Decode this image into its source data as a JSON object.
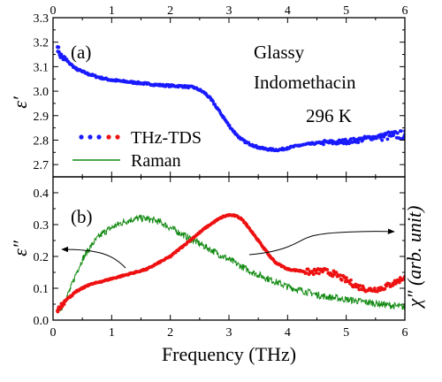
{
  "chart_data": [
    {
      "panel": "(a)",
      "type": "scatter",
      "ylabel": "ε′",
      "xlim": [
        0,
        6
      ],
      "ylim": [
        2.65,
        3.3
      ],
      "yticks": [
        "2.7",
        "2.8",
        "2.9",
        "3.0",
        "3.1",
        "3.2",
        "3.3"
      ],
      "xticks_top": [
        "0",
        "1",
        "2",
        "3",
        "4",
        "5",
        "6"
      ],
      "annotations": [
        "Glassy",
        "Indomethacin",
        "296 K"
      ],
      "legend": {
        "placement": "bottom-left",
        "entries": [
          "THz-TDS",
          "Raman"
        ]
      },
      "series": [
        {
          "name": "THz-TDS",
          "color": "#1a1aff",
          "x": [
            0.08,
            0.1,
            0.12,
            0.15,
            0.2,
            0.3,
            0.4,
            0.5,
            0.6,
            0.8,
            1.0,
            1.2,
            1.4,
            1.6,
            1.8,
            2.0,
            2.2,
            2.4,
            2.5,
            2.6,
            2.7,
            2.8,
            2.9,
            3.0,
            3.1,
            3.2,
            3.3,
            3.4,
            3.5,
            3.6,
            3.7,
            3.8,
            3.9,
            4.0,
            4.2,
            4.4,
            4.6,
            4.8,
            5.0,
            5.2,
            5.4,
            5.6,
            5.8,
            6.0
          ],
          "y": [
            3.18,
            3.16,
            3.15,
            3.14,
            3.13,
            3.11,
            3.09,
            3.08,
            3.07,
            3.055,
            3.045,
            3.04,
            3.035,
            3.03,
            3.025,
            3.022,
            3.02,
            3.015,
            3.005,
            2.99,
            2.965,
            2.93,
            2.895,
            2.86,
            2.83,
            2.805,
            2.79,
            2.78,
            2.77,
            2.765,
            2.762,
            2.76,
            2.762,
            2.768,
            2.778,
            2.785,
            2.79,
            2.79,
            2.795,
            2.8,
            2.81,
            2.815,
            2.82,
            2.822
          ]
        }
      ]
    },
    {
      "panel": "(b)",
      "type": "line",
      "xlabel": "Frequency (THz)",
      "ylabel": "ε″",
      "ylabel_right": "χ″ (arb. unit)",
      "xlim": [
        0,
        6
      ],
      "ylim": [
        0,
        0.45
      ],
      "xticks": [
        "0",
        "1",
        "2",
        "3",
        "4",
        "5",
        "6"
      ],
      "yticks": [
        "0.0",
        "0.1",
        "0.2",
        "0.3",
        "0.4"
      ],
      "series": [
        {
          "name": "THz-TDS",
          "color": "#ee1111",
          "x": [
            0.08,
            0.1,
            0.15,
            0.2,
            0.3,
            0.4,
            0.5,
            0.6,
            0.8,
            1.0,
            1.2,
            1.4,
            1.6,
            1.8,
            2.0,
            2.2,
            2.4,
            2.6,
            2.8,
            2.9,
            3.0,
            3.1,
            3.2,
            3.3,
            3.4,
            3.5,
            3.6,
            3.7,
            3.8,
            3.9,
            4.0,
            4.2,
            4.4,
            4.6,
            4.8,
            5.0,
            5.2,
            5.4,
            5.6,
            5.8,
            6.0
          ],
          "y": [
            0.03,
            0.04,
            0.05,
            0.06,
            0.075,
            0.09,
            0.1,
            0.11,
            0.12,
            0.13,
            0.14,
            0.15,
            0.16,
            0.18,
            0.2,
            0.23,
            0.26,
            0.29,
            0.315,
            0.325,
            0.33,
            0.328,
            0.32,
            0.3,
            0.275,
            0.25,
            0.225,
            0.2,
            0.18,
            0.17,
            0.16,
            0.155,
            0.15,
            0.155,
            0.145,
            0.125,
            0.105,
            0.095,
            0.1,
            0.115,
            0.135
          ]
        },
        {
          "name": "Raman",
          "color": "#128a12",
          "x": [
            0.12,
            0.2,
            0.3,
            0.4,
            0.5,
            0.6,
            0.7,
            0.8,
            0.9,
            1.0,
            1.1,
            1.2,
            1.3,
            1.4,
            1.5,
            1.6,
            1.8,
            2.0,
            2.2,
            2.4,
            2.6,
            2.8,
            3.0,
            3.2,
            3.4,
            3.6,
            3.8,
            4.0,
            4.2,
            4.4,
            4.6,
            4.8,
            5.0,
            5.2,
            5.4,
            5.6,
            5.8,
            6.0
          ],
          "y": [
            0.03,
            0.06,
            0.1,
            0.15,
            0.19,
            0.22,
            0.245,
            0.265,
            0.28,
            0.29,
            0.3,
            0.308,
            0.314,
            0.318,
            0.32,
            0.318,
            0.31,
            0.29,
            0.27,
            0.25,
            0.23,
            0.21,
            0.19,
            0.17,
            0.15,
            0.135,
            0.12,
            0.105,
            0.095,
            0.085,
            0.075,
            0.07,
            0.065,
            0.06,
            0.055,
            0.05,
            0.045,
            0.04
          ]
        }
      ]
    }
  ]
}
